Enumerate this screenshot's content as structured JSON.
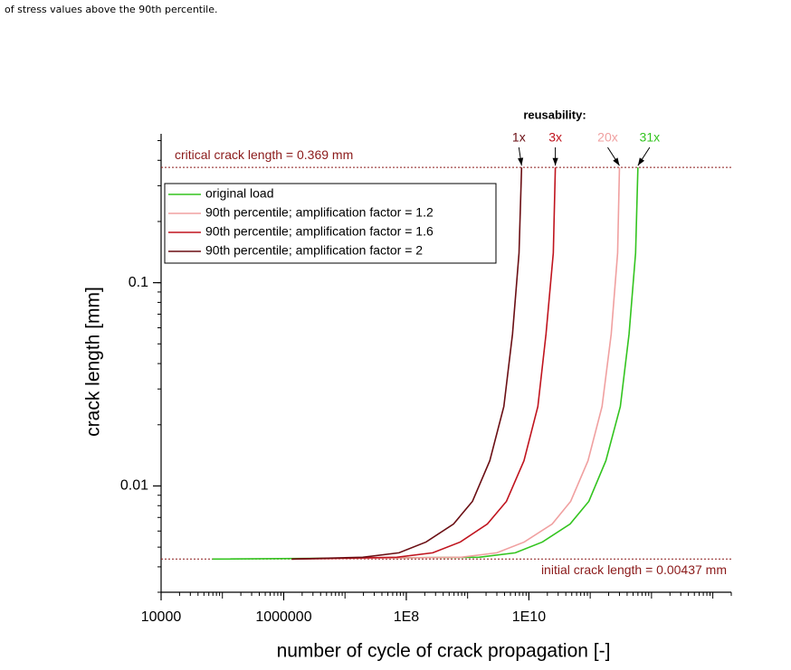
{
  "caption": "of stress values above the 90th percentile.",
  "chart_data": {
    "type": "line",
    "xlabel": "number of cycle of crack propagation [-]",
    "ylabel": "crack length [mm]",
    "xscale": "log",
    "yscale": "log",
    "xlim": [
      10000,
      20000000000000
    ],
    "ylim": [
      0.003,
      0.54
    ],
    "xticks": [
      10000,
      1000000,
      {
        "value": 100000000,
        "label": "1E8"
      },
      {
        "value": 10000000000,
        "label": "1E10"
      }
    ],
    "yticks": [
      0.01,
      0.1
    ],
    "legend": "upper left",
    "annotation_title": "reusability:",
    "hlines": [
      {
        "value": 0.369,
        "label": "critical crack length = 0.369 mm",
        "color": "#8b1a1a"
      },
      {
        "value": 0.00437,
        "label": "initial crack length = 0.00437 mm",
        "color": "#8b1a1a"
      }
    ],
    "series": [
      {
        "name": "original load",
        "color": "#33c41f",
        "annotation": "31x",
        "x": [
          69000,
          1540000000,
          6000000000,
          16600000000,
          47000000000,
          95000000000,
          180000000000,
          310000000000,
          430000000000,
          550000000000,
          600000000000
        ],
        "values": [
          0.00437,
          0.00446,
          0.00469,
          0.0053,
          0.0065,
          0.0084,
          0.0133,
          0.0246,
          0.0558,
          0.14,
          0.369
        ]
      },
      {
        "name": "90th percentile; amplification factor = 1.2",
        "color": "#f0a0a0",
        "annotation": "20x",
        "x": [
          1350000,
          780000000,
          3000000000,
          8400000000,
          24000000000,
          48000000000,
          92000000000,
          156000000000,
          220000000000,
          280000000000,
          300000000000
        ],
        "values": [
          0.00437,
          0.00446,
          0.00469,
          0.0053,
          0.0065,
          0.0084,
          0.0133,
          0.0246,
          0.0558,
          0.14,
          0.369
        ]
      },
      {
        "name": "90th percentile; amplification factor = 1.6",
        "color": "#c0141e",
        "annotation": "3x",
        "x": [
          1350000,
          70000000,
          270000000,
          760000000,
          2100000000,
          4300000000,
          8300000000,
          14000000000,
          19000000000,
          25000000000,
          27000000000
        ],
        "values": [
          0.00437,
          0.00446,
          0.00469,
          0.0053,
          0.0065,
          0.0084,
          0.0133,
          0.0246,
          0.0558,
          0.14,
          0.369
        ]
      },
      {
        "name": "90th percentile; amplification factor = 2",
        "color": "#6b0f14",
        "annotation": "1x",
        "x": [
          1350000,
          19500000,
          76000000,
          210000000,
          590000000,
          1200000000,
          2300000000,
          3900000000,
          5400000000,
          6900000000,
          7600000000
        ],
        "values": [
          0.00437,
          0.00446,
          0.00469,
          0.0053,
          0.0065,
          0.0084,
          0.0133,
          0.0246,
          0.0558,
          0.14,
          0.369
        ]
      }
    ]
  }
}
